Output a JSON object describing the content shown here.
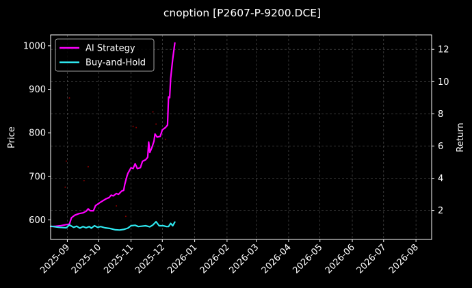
{
  "chart_data": {
    "type": "line",
    "title": "cnoption [P2607-P-9200.DCE]",
    "ylabel": "Price",
    "y2label": "Return",
    "xlim": [
      "2025-08-16",
      "2026-08-16"
    ],
    "ylim": [
      555,
      1025
    ],
    "y2lim": [
      0.2,
      12.9
    ],
    "x_tick_labels": [
      "2025-09",
      "2025-10",
      "2025-11",
      "2025-12",
      "2026-01",
      "2026-02",
      "2026-03",
      "2026-04",
      "2026-05",
      "2026-06",
      "2026-07",
      "2026-08"
    ],
    "x_ticks": [
      "2025-09-01",
      "2025-10-01",
      "2025-11-01",
      "2025-12-01",
      "2026-01-01",
      "2026-02-01",
      "2026-03-01",
      "2026-04-01",
      "2026-05-01",
      "2026-06-01",
      "2026-07-01",
      "2026-08-01"
    ],
    "y_ticks": [
      600,
      700,
      800,
      900,
      1000
    ],
    "y2_ticks": [
      2,
      4,
      6,
      8,
      10,
      12
    ],
    "grid": true,
    "legend_position": "top-left",
    "series": [
      {
        "name": "AI Strategy",
        "color": "#ff00ff",
        "axis": "right",
        "points": [
          [
            "2025-08-16",
            1.0
          ],
          [
            "2025-08-21",
            1.02
          ],
          [
            "2025-08-26",
            1.06
          ],
          [
            "2025-08-31",
            1.12
          ],
          [
            "2025-09-03",
            1.15
          ],
          [
            "2025-09-05",
            1.55
          ],
          [
            "2025-09-08",
            1.7
          ],
          [
            "2025-09-12",
            1.8
          ],
          [
            "2025-09-16",
            1.85
          ],
          [
            "2025-09-19",
            1.95
          ],
          [
            "2025-09-21",
            2.1
          ],
          [
            "2025-09-23",
            1.98
          ],
          [
            "2025-09-26",
            1.98
          ],
          [
            "2025-09-28",
            2.3
          ],
          [
            "2025-10-03",
            2.52
          ],
          [
            "2025-10-08",
            2.72
          ],
          [
            "2025-10-11",
            2.8
          ],
          [
            "2025-10-13",
            2.95
          ],
          [
            "2025-10-15",
            2.9
          ],
          [
            "2025-10-18",
            3.05
          ],
          [
            "2025-10-20",
            3.0
          ],
          [
            "2025-10-23",
            3.2
          ],
          [
            "2025-10-25",
            3.25
          ],
          [
            "2025-10-26",
            3.6
          ],
          [
            "2025-10-28",
            4.1
          ],
          [
            "2025-10-29",
            4.3
          ],
          [
            "2025-11-01",
            4.65
          ],
          [
            "2025-11-03",
            4.6
          ],
          [
            "2025-11-05",
            4.9
          ],
          [
            "2025-11-07",
            4.6
          ],
          [
            "2025-11-10",
            4.65
          ],
          [
            "2025-11-12",
            5.05
          ],
          [
            "2025-11-15",
            5.15
          ],
          [
            "2025-11-17",
            5.3
          ],
          [
            "2025-11-18",
            6.25
          ],
          [
            "2025-11-19",
            5.6
          ],
          [
            "2025-11-21",
            5.9
          ],
          [
            "2025-11-23",
            6.3
          ],
          [
            "2025-11-24",
            6.75
          ],
          [
            "2025-11-26",
            6.55
          ],
          [
            "2025-11-29",
            6.6
          ],
          [
            "2025-12-01",
            7.0
          ],
          [
            "2025-12-04",
            7.15
          ],
          [
            "2025-12-06",
            7.3
          ],
          [
            "2025-12-07",
            9.05
          ],
          [
            "2025-12-08",
            9.0
          ],
          [
            "2025-12-09",
            10.2
          ],
          [
            "2025-12-11",
            11.4
          ],
          [
            "2025-12-13",
            12.4
          ]
        ]
      },
      {
        "name": "Buy-and-Hold",
        "color": "#2ee6ee",
        "axis": "right",
        "points": [
          [
            "2025-08-16",
            1.02
          ],
          [
            "2025-08-24",
            0.95
          ],
          [
            "2025-08-31",
            0.92
          ],
          [
            "2025-09-03",
            1.1
          ],
          [
            "2025-09-07",
            0.95
          ],
          [
            "2025-09-10",
            1.02
          ],
          [
            "2025-09-13",
            0.9
          ],
          [
            "2025-09-16",
            1.0
          ],
          [
            "2025-09-19",
            0.92
          ],
          [
            "2025-09-22",
            1.0
          ],
          [
            "2025-09-24",
            0.9
          ],
          [
            "2025-09-27",
            1.05
          ],
          [
            "2025-09-30",
            0.95
          ],
          [
            "2025-10-03",
            1.0
          ],
          [
            "2025-10-07",
            0.92
          ],
          [
            "2025-10-12",
            0.88
          ],
          [
            "2025-10-17",
            0.8
          ],
          [
            "2025-10-21",
            0.78
          ],
          [
            "2025-10-25",
            0.82
          ],
          [
            "2025-10-29",
            0.9
          ],
          [
            "2025-11-01",
            1.05
          ],
          [
            "2025-11-05",
            1.08
          ],
          [
            "2025-11-08",
            1.0
          ],
          [
            "2025-11-11",
            1.02
          ],
          [
            "2025-11-15",
            1.05
          ],
          [
            "2025-11-19",
            0.98
          ],
          [
            "2025-11-22",
            1.1
          ],
          [
            "2025-11-25",
            1.3
          ],
          [
            "2025-11-28",
            1.05
          ],
          [
            "2025-12-02",
            1.05
          ],
          [
            "2025-12-05",
            1.0
          ],
          [
            "2025-12-07",
            1.0
          ],
          [
            "2025-12-09",
            1.2
          ],
          [
            "2025-12-11",
            1.05
          ],
          [
            "2025-12-13",
            1.28
          ]
        ]
      }
    ],
    "markers": {
      "color": "#8b0000",
      "axis": "left",
      "points": [
        [
          "2025-08-30",
          675
        ],
        [
          "2025-08-31",
          735
        ],
        [
          "2025-09-03",
          880
        ],
        [
          "2025-09-17",
          690
        ],
        [
          "2025-09-21",
          722
        ],
        [
          "2025-10-18",
          632
        ],
        [
          "2025-10-27",
          608
        ],
        [
          "2025-11-03",
          815
        ],
        [
          "2025-11-06",
          812
        ],
        [
          "2025-11-22",
          848
        ],
        [
          "2025-11-25",
          820
        ],
        [
          "2025-12-04",
          785
        ]
      ]
    }
  }
}
